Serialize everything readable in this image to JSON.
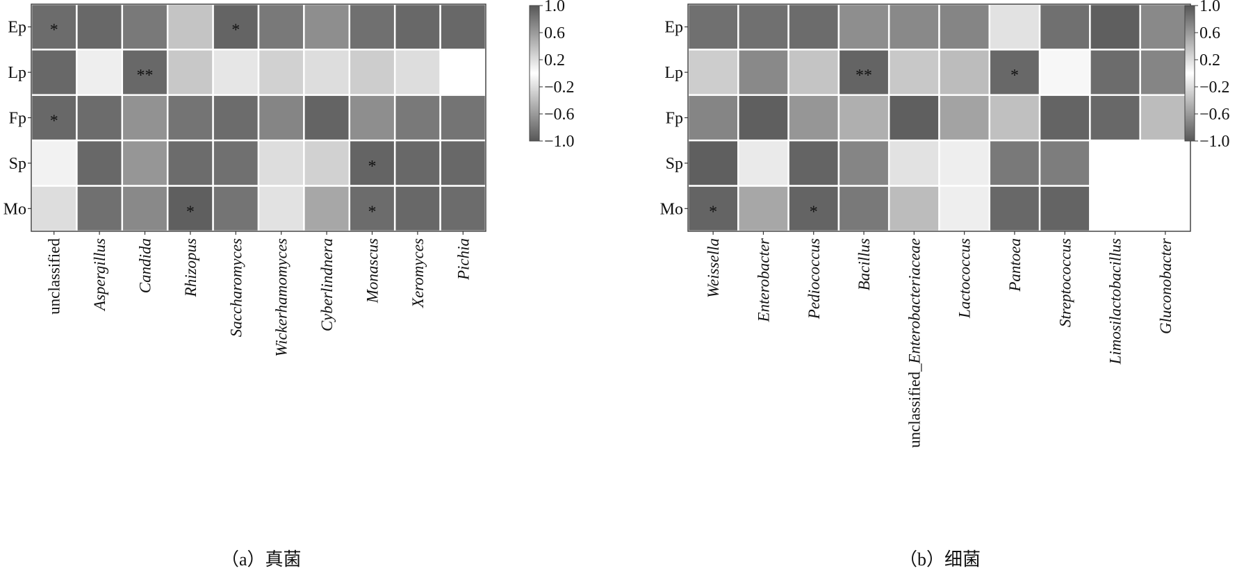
{
  "chart_data": [
    {
      "type": "heatmap",
      "caption": "（a）真菌",
      "rows": [
        "Ep",
        "Lp",
        "Fp",
        "Sp",
        "Mo"
      ],
      "columns": [
        "unclassified",
        "Aspergillus",
        "Candida",
        "Rhizopus",
        "Saccharomyces",
        "Wickerhamomyces",
        "Cyberlindnera",
        "Monascus",
        "Xeromyces",
        "Pichia"
      ],
      "italic_columns": [
        false,
        true,
        true,
        true,
        true,
        true,
        true,
        true,
        true,
        true
      ],
      "values": [
        [
          -0.75,
          -0.8,
          -0.6,
          0.3,
          -0.85,
          -0.6,
          -0.35,
          -0.7,
          -0.8,
          -0.8
        ],
        [
          -0.8,
          0.8,
          -0.8,
          0.35,
          0.7,
          0.45,
          0.6,
          0.4,
          0.6,
          1.0
        ],
        [
          -0.8,
          -0.75,
          -0.3,
          -0.65,
          -0.75,
          -0.45,
          -0.85,
          -0.35,
          -0.6,
          -0.65
        ],
        [
          0.85,
          -0.8,
          -0.25,
          -0.75,
          -0.7,
          0.6,
          0.45,
          -0.85,
          -0.8,
          -0.8
        ],
        [
          0.6,
          -0.7,
          -0.4,
          -0.9,
          -0.65,
          0.65,
          -0.05,
          -0.75,
          -0.8,
          -0.75
        ]
      ],
      "significance": [
        [
          "*",
          "",
          "",
          "",
          "*",
          "",
          "",
          "",
          "",
          ""
        ],
        [
          "",
          "",
          "**",
          "",
          "",
          "",
          "",
          "",
          "",
          ""
        ],
        [
          "*",
          "",
          "",
          "",
          "",
          "",
          "",
          "",
          "",
          ""
        ],
        [
          "",
          "",
          "",
          "",
          "",
          "",
          "",
          "*",
          "",
          ""
        ],
        [
          "",
          "",
          "",
          "*",
          "",
          "",
          "",
          "*",
          "",
          ""
        ]
      ],
      "colorbar": {
        "min": -1.0,
        "max": 1.0,
        "ticks": [
          "1.0",
          "0.6",
          "0.2",
          "−0.2",
          "−0.6",
          "−1.0"
        ]
      },
      "colors": {
        "low": "#575757",
        "high": "#ffffff",
        "grid": "#ffffff",
        "frame": "#444444"
      }
    },
    {
      "type": "heatmap",
      "caption": "（b）细菌",
      "rows": [
        "Ep",
        "Lp",
        "Fp",
        "Sp",
        "Mo"
      ],
      "columns": [
        "Weissella",
        "Enterobacter",
        "Pediococcus",
        "Bacillus",
        "unclassified_Enterobacteriaceae",
        "Lactococcus",
        "Pantoea",
        "Streptococcus",
        "Limosilactobacillus",
        "Gluconobacter"
      ],
      "column_parts": [
        [
          {
            "t": "Weissella",
            "i": true
          }
        ],
        [
          {
            "t": "Enterobacter",
            "i": true
          }
        ],
        [
          {
            "t": "Pediococcus",
            "i": true
          }
        ],
        [
          {
            "t": "Bacillus",
            "i": true
          }
        ],
        [
          {
            "t": "unclassified_",
            "i": false
          },
          {
            "t": "Enterobacteriaceae",
            "i": true
          }
        ],
        [
          {
            "t": "Lactococcus",
            "i": true
          }
        ],
        [
          {
            "t": "Pantoea",
            "i": true
          }
        ],
        [
          {
            "t": "Streptococcus",
            "i": true
          }
        ],
        [
          {
            "t": "Limosilactobacillus",
            "i": true
          }
        ],
        [
          {
            "t": "Gluconobacter",
            "i": true
          }
        ]
      ],
      "values": [
        [
          -0.7,
          -0.7,
          -0.75,
          -0.35,
          -0.4,
          -0.45,
          0.65,
          -0.7,
          -0.9,
          -0.4
        ],
        [
          0.4,
          -0.4,
          0.3,
          -0.85,
          0.35,
          0.2,
          -0.8,
          0.9,
          -0.75,
          -0.45
        ],
        [
          -0.45,
          -0.9,
          -0.25,
          0.05,
          -0.9,
          -0.1,
          0.25,
          -0.85,
          -0.8,
          0.2
        ],
        [
          -0.9,
          0.75,
          -0.85,
          -0.45,
          0.65,
          0.8,
          -0.6,
          -0.55,
          null,
          null
        ],
        [
          -0.85,
          -0.05,
          -0.85,
          -0.6,
          0.2,
          0.8,
          -0.8,
          -0.85,
          null,
          null
        ]
      ],
      "significance": [
        [
          "",
          "",
          "",
          "",
          "",
          "",
          "",
          "",
          "",
          ""
        ],
        [
          "",
          "",
          "",
          "**",
          "",
          "",
          "*",
          "",
          "",
          ""
        ],
        [
          "",
          "",
          "",
          "",
          "",
          "",
          "",
          "",
          "",
          ""
        ],
        [
          "",
          "",
          "",
          "",
          "",
          "",
          "",
          "",
          "",
          ""
        ],
        [
          "*",
          "",
          "*",
          "",
          "",
          "",
          "",
          "",
          "",
          ""
        ]
      ],
      "colorbar": {
        "min": -1.0,
        "max": 1.0,
        "ticks": [
          "1.0",
          "0.6",
          "0.2",
          "−0.2",
          "−0.6",
          "−1.0"
        ]
      },
      "colors": {
        "low": "#575757",
        "high": "#ffffff",
        "grid": "#ffffff",
        "frame": "#444444"
      }
    }
  ]
}
